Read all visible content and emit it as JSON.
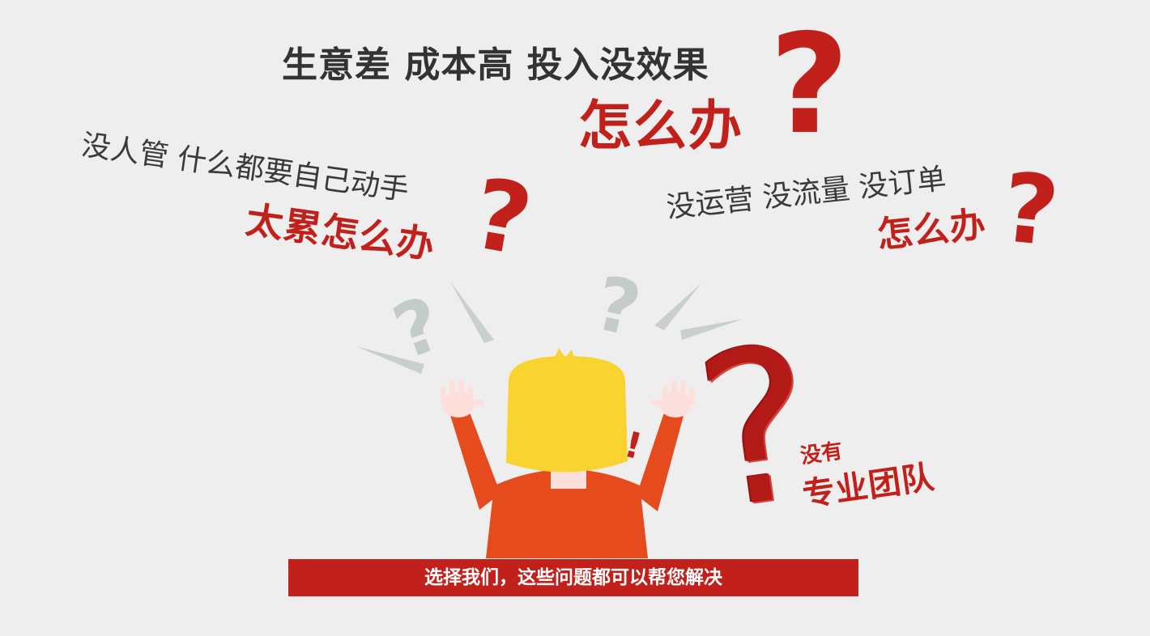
{
  "headline": {
    "line1": "生意差  成本高  投入没效果",
    "line2": "怎么办",
    "mark": "?"
  },
  "left_callout": {
    "line1": "没人管  什么都要自己动手",
    "line2": "太累怎么办",
    "mark": "?"
  },
  "right_callout": {
    "line1": "没运营  没流量  没订单",
    "line2": "怎么办",
    "mark": "?"
  },
  "team_callout": {
    "small": "没有",
    "big": "专业团队",
    "mark": "?"
  },
  "banner": {
    "text": "选择我们，这些问题都可以帮您解决"
  },
  "figure": {
    "exclaim": "!",
    "gray_marks": [
      "?",
      "?"
    ]
  },
  "colors": {
    "accent_red": "#c1201b",
    "hair_yellow": "#f9d330",
    "shirt_orange": "#e54b1c",
    "skin": "#fde0dc",
    "background": "#efeeee"
  }
}
